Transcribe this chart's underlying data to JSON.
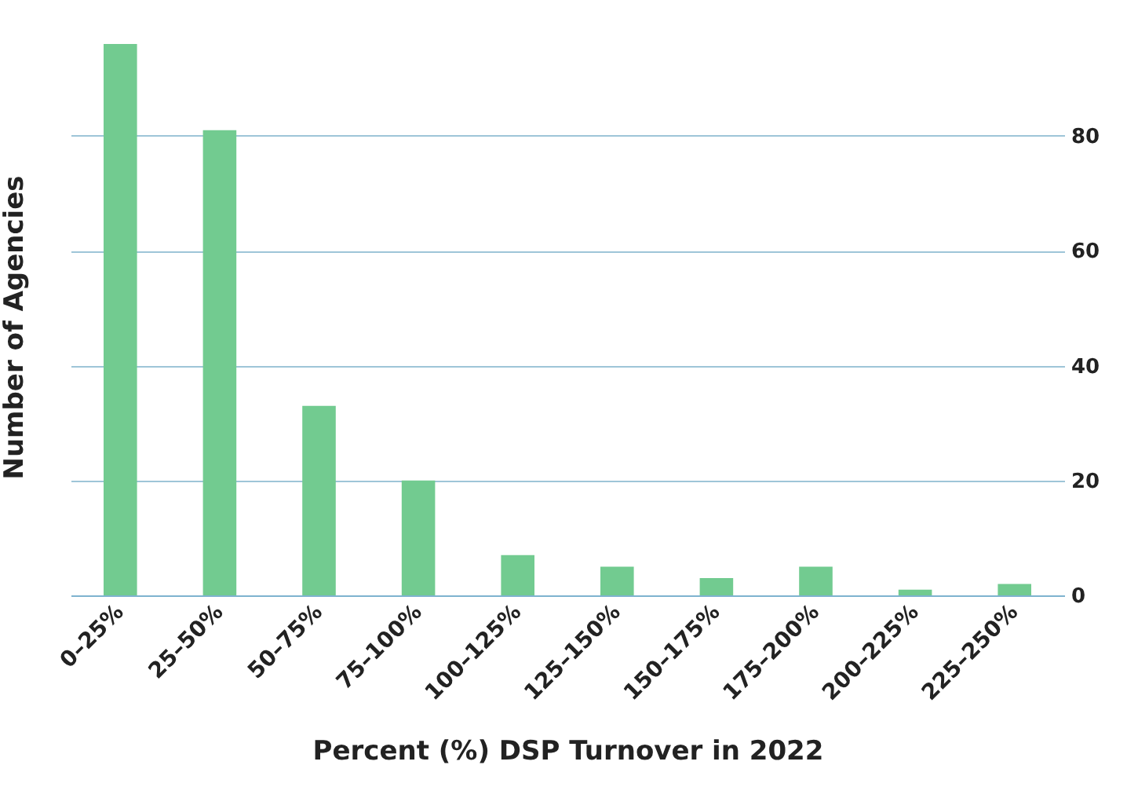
{
  "chart_data": {
    "type": "bar",
    "xlabel": "Percent (%) DSP Turnover in 2022",
    "ylabel": "Number of Agencies",
    "categories": [
      "0–25%",
      "25–50%",
      "50–75%",
      "75–100%",
      "100–125%",
      "125–150%",
      "150–175%",
      "175–200%",
      "200–225%",
      "225–250%"
    ],
    "values": [
      96,
      81,
      33,
      20,
      7,
      5,
      3,
      5,
      1,
      2
    ],
    "color": "#72cb90",
    "ylim": [
      0,
      96
    ],
    "yticks": [
      0,
      20,
      40,
      60,
      80
    ],
    "grid": "y"
  }
}
